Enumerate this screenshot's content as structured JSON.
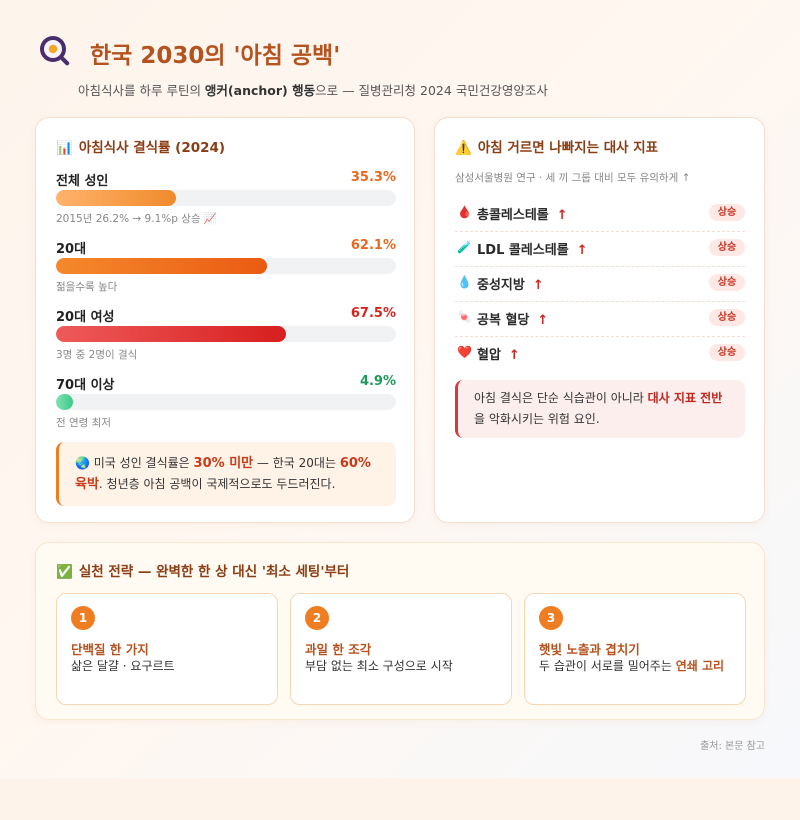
{
  "header": {
    "title": "한국 2030의 '아침 공백'",
    "subtitle_pre": "아침식사를 하루 루틴의 ",
    "subtitle_bold": "앵커(anchor) 행동",
    "subtitle_post": "으로 — 질병관리청 2024 국민건강영양조사"
  },
  "skip_rate": {
    "title": "아침식사 결식률 (2024)",
    "stats": [
      {
        "label": "전체 성인",
        "value_text": "35.3%",
        "value": 35.3,
        "note": "2015년 26.2% → 9.1%p 상승 📈",
        "color": "#e8681e",
        "fill": "linear-gradient(90deg,#ffb36b,#f08a2c)"
      },
      {
        "label": "20대",
        "value_text": "62.1%",
        "value": 62.1,
        "note": "젊을수록 높다",
        "color": "#e8681e",
        "fill": "linear-gradient(90deg,#f5892c,#ea5b12)"
      },
      {
        "label": "20대 여성",
        "value_text": "67.5%",
        "value": 67.5,
        "note": "3명 중 2명이 결식",
        "color": "#d2271f",
        "fill": "linear-gradient(90deg,#ef5a5a,#d71f1f)"
      },
      {
        "label": "70대 이상",
        "value_text": "4.9%",
        "value": 4.9,
        "note": "전 연령 최저",
        "color": "#1e9a5c",
        "fill": "linear-gradient(90deg,#7fe3b0,#3cc98a)"
      }
    ],
    "callout": {
      "icon": "🌏",
      "t1": " 미국 성인 결식률은 ",
      "h1": "30% 미만",
      "t2": " — 한국 20대는 ",
      "h2": "60% 육박",
      "t3": ". 청년층 아침 공백이 국제적으로도 두드러진다."
    }
  },
  "metabolic": {
    "title": "아침 거르면 나빠지는 대사 지표",
    "subtitle": "삼성서울병원 연구 · 세 끼 그룹 대비 모두 유의하게 ↑",
    "items": [
      {
        "icon": "🩸",
        "label": "총콜레스테롤",
        "arrow": "↑",
        "badge": "상승"
      },
      {
        "icon": "🧪",
        "label": "LDL 콜레스테롤",
        "arrow": "↑",
        "badge": "상승"
      },
      {
        "icon": "💧",
        "label": "중성지방",
        "arrow": "↑",
        "badge": "상승"
      },
      {
        "icon": "🍬",
        "label": "공복 혈당",
        "arrow": "↑",
        "badge": "상승"
      },
      {
        "icon": "❤️",
        "label": "혈압",
        "arrow": "↑",
        "badge": "상승"
      }
    ],
    "callout": {
      "t1": "아침 결식은 단순 식습관이 아니라 ",
      "h1": "대사 지표 전반",
      "t2": "을 악화시키는 위험 요인."
    }
  },
  "strategy": {
    "title": "실천 전략 — 완벽한 한 상 대신 '최소 세팅'부터",
    "steps": [
      {
        "num": "1",
        "title": "단백질 한 가지",
        "desc": "삶은 달걀 · 요구르트",
        "desc_hl": ""
      },
      {
        "num": "2",
        "title": "과일 한 조각",
        "desc": "부담 없는 최소 구성으로 시작",
        "desc_hl": ""
      },
      {
        "num": "3",
        "title": "햇빛 노출과 겹치기",
        "desc": "두 습관이 서로를 밀어주는 ",
        "desc_hl": "연쇄 고리"
      }
    ]
  },
  "footer": {
    "source": "출처: 본문 참고"
  },
  "icons": {
    "logo": "frying-pan-egg-icon",
    "chart": "bar-chart-icon",
    "warning": "warning-icon",
    "check": "check-box-icon"
  },
  "colors": {
    "accent": "#ef7d22",
    "title": "#b4531f",
    "danger": "#d63a3a"
  }
}
